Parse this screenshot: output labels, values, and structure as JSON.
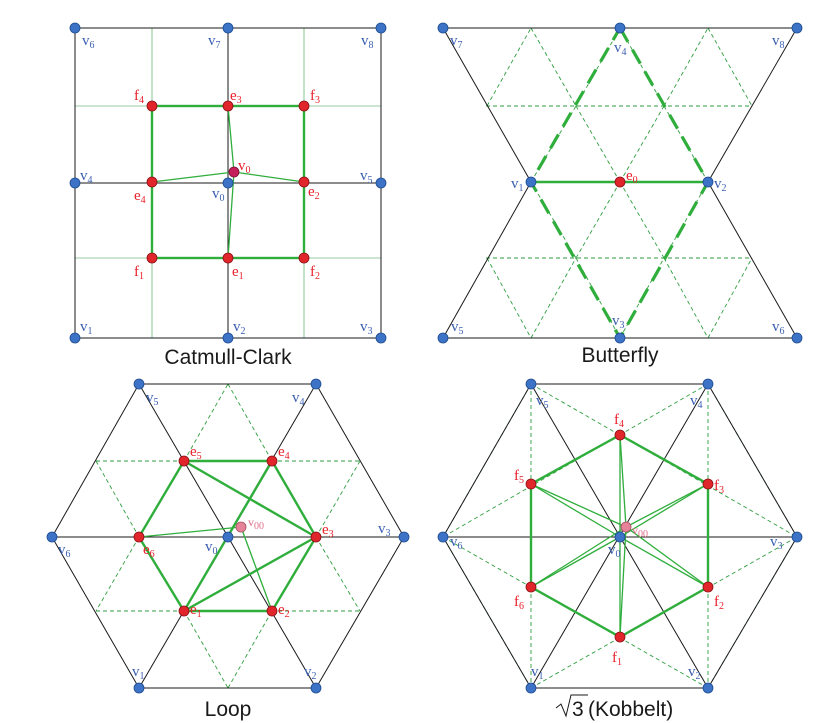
{
  "panels": {
    "catmull_clark": {
      "caption": "Catmull-Clark",
      "labels": {
        "v6": "v6",
        "v7": "v7",
        "v8": "v8",
        "v4": "v4",
        "v0": "v0",
        "v5": "v5",
        "v1": "v1",
        "v2": "v2",
        "v3": "v3",
        "vnew": "v0",
        "f4": "f4",
        "e3": "e3",
        "f3": "f3",
        "e4": "e4",
        "e2": "e2",
        "f1": "f1",
        "e1": "e1",
        "f2": "f2"
      }
    },
    "butterfly": {
      "caption": "Butterfly",
      "labels": {
        "v7": "v7",
        "v4": "v4",
        "v8": "v8",
        "v1": "v1",
        "e0": "e0",
        "v2": "v2",
        "v5": "v5",
        "v3": "v3",
        "v6": "v6"
      }
    },
    "loop": {
      "caption": "Loop",
      "labels": {
        "v5": "v5",
        "v4": "v4",
        "e5": "e5",
        "e4": "e4",
        "v00": "v00",
        "e6": "e6",
        "e3": "e3",
        "v6": "v6",
        "v0": "v0",
        "v3": "v3",
        "e1": "e1",
        "e2": "e2",
        "v1": "v1",
        "v2": "v2"
      }
    },
    "sqrt3": {
      "caption_prefix": "√3",
      "caption": "(Kobbelt)",
      "labels": {
        "v5": "v5",
        "v4": "v4",
        "f4": "f4",
        "f5": "f5",
        "f3": "f3",
        "v6": "v6",
        "v00": "v00",
        "v0": "v0",
        "v3": "v3",
        "f6": "f6",
        "f2": "f2",
        "f1": "f1",
        "v1": "v1",
        "v2": "v2"
      }
    }
  },
  "colors": {
    "vertex": "#3d73c7",
    "new_point": "#e0262b",
    "label_vertex": "#3a5fb0",
    "label_new": "#e8202a",
    "accent_green": "#2fae3c",
    "mesh": "#1a1a1a"
  }
}
